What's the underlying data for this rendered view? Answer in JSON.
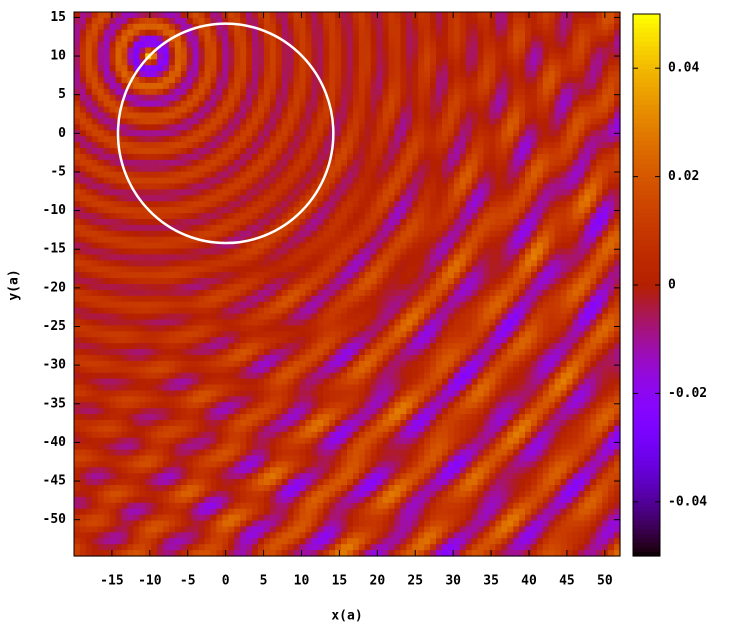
{
  "chart_data": {
    "type": "heatmap",
    "xlabel": "x(a)",
    "ylabel": "y(a)",
    "xlim": [
      -20,
      52
    ],
    "ylim": [
      -54.7,
      15.7
    ],
    "xticks": [
      -15,
      -10,
      -5,
      0,
      5,
      10,
      15,
      20,
      25,
      30,
      35,
      40,
      45,
      50
    ],
    "yticks": [
      15,
      10,
      5,
      0,
      -5,
      -10,
      -15,
      -20,
      -25,
      -30,
      -35,
      -40,
      -45,
      -50
    ],
    "cblim": [
      -0.05,
      0.05
    ],
    "cbticks": [
      -0.04,
      -0.02,
      0,
      0.02,
      0.04
    ],
    "circle": {
      "x": 0,
      "y": 0,
      "r": 14.2,
      "color": "#ffffff"
    }
  }
}
